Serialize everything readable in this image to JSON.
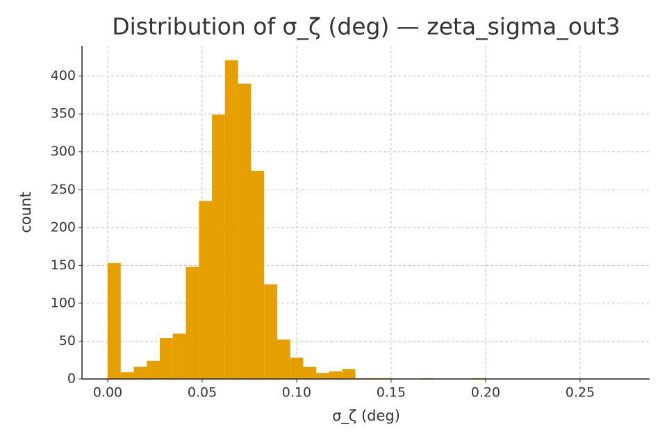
{
  "chart_data": {
    "type": "histogram",
    "title": "Distribution of σ_ζ (deg) — zeta_sigma_out3",
    "xlabel": "σ_ζ (deg)",
    "ylabel": "count",
    "color": "#E69F00",
    "grid": true,
    "bins": [
      0,
      0.0069,
      0.0138,
      0.0207,
      0.0276,
      0.0345,
      0.0414,
      0.0483,
      0.0552,
      0.0621,
      0.069,
      0.0759,
      0.0828,
      0.0897,
      0.0966,
      0.1035,
      0.1104,
      0.1173,
      0.1242,
      0.1311,
      0.138,
      0.1449,
      0.1518,
      0.1587,
      0.1656,
      0.1725,
      0.1794,
      0.1863,
      0.1932,
      0.2001,
      0.207
    ],
    "values": [
      153,
      9,
      16,
      24,
      54,
      60,
      148,
      235,
      349,
      421,
      390,
      275,
      125,
      52,
      28,
      16,
      8,
      10,
      13,
      1,
      1,
      1,
      0,
      0,
      1,
      0,
      0,
      0,
      1,
      0
    ],
    "xlim": [
      -0.0136,
      0.2868
    ],
    "xticks": [
      {
        "value": 0,
        "label": "0.00"
      },
      {
        "value": 0.05,
        "label": "0.05"
      },
      {
        "value": 0.1,
        "label": "0.10"
      },
      {
        "value": 0.15,
        "label": "0.15"
      },
      {
        "value": 0.2,
        "label": "0.20"
      },
      {
        "value": 0.25,
        "label": "0.25"
      }
    ],
    "ylim": [
      0,
      440
    ],
    "yticks": [
      0,
      50,
      100,
      150,
      200,
      250,
      300,
      350,
      400
    ]
  }
}
